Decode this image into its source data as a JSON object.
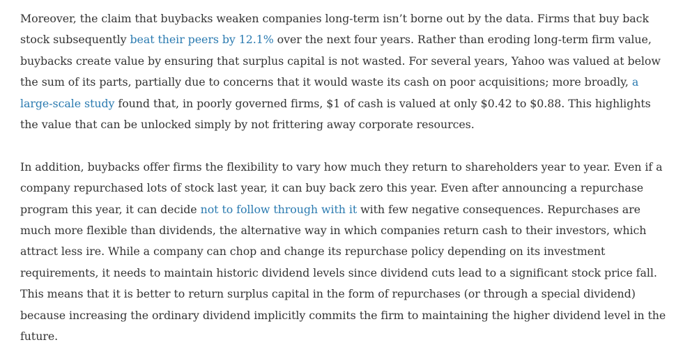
{
  "paragraphs": [
    {
      "segments": [
        {
          "text": "Moreover, the claim that buybacks weaken companies long-term isn’t borne out by the data. Firms that buy back stock subsequently "
        },
        {
          "text": "beat their peers by 12.1%",
          "link": true
        },
        {
          "text": " over the next four years. Rather than eroding long-term firm value, buybacks create value by ensuring that surplus capital is not wasted. For several years, Yahoo was valued at below the sum of its parts, partially due to concerns that it would waste its cash on poor acquisitions; more broadly, "
        },
        {
          "text": "a large-scale study",
          "link": true
        },
        {
          "text": " found that, in poorly governed firms, $1 of cash is valued at only $0.42 to $0.88. This highlights the value that can be unlocked simply by not frittering away corporate resources."
        }
      ]
    },
    {
      "segments": [
        {
          "text": "In addition, buybacks offer firms the flexibility to vary how much they return to shareholders year to year. Even if a company repurchased lots of stock last year, it can buy back zero this year. Even after announcing a repurchase program this year, it can decide "
        },
        {
          "text": "not to follow through with it",
          "link": true
        },
        {
          "text": " with few negative consequences. Repurchases are much more flexible than dividends, the alternative way in which companies return cash to their investors, which attract less ire. While a company can chop and change its repurchase policy depending on its investment requirements, it needs to maintain historic dividend levels since dividend cuts lead to a significant stock price fall. This means that it is better to return surplus capital in the form of repurchases (or through a special dividend) because increasing the ordinary dividend implicitly commits the firm to maintaining the higher dividend level in the future."
        }
      ]
    }
  ],
  "colors": {
    "text": "#333333",
    "link": "#2a7ab0",
    "background": "#ffffff"
  }
}
